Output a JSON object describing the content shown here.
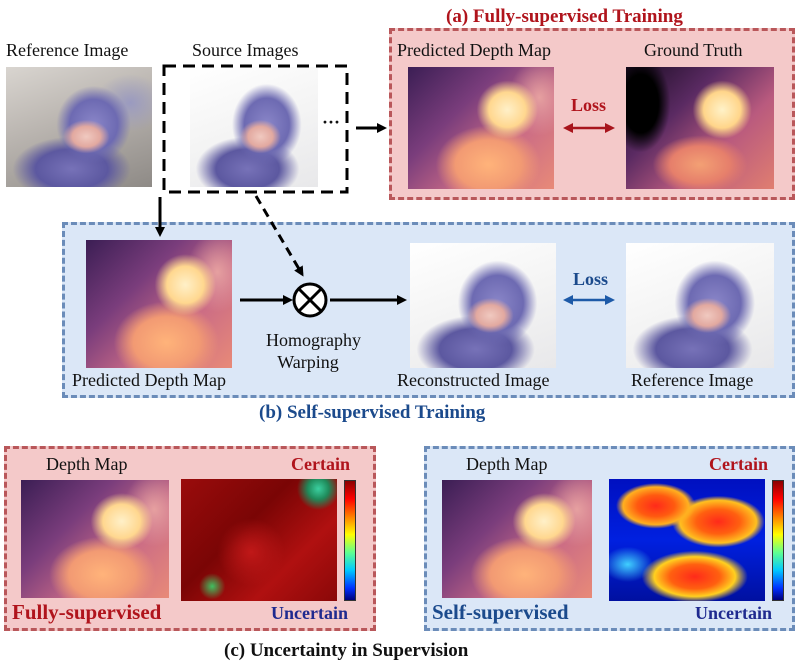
{
  "figure": {
    "top": {
      "reference_image_label": "Reference Image",
      "source_images_label": "Source Images",
      "ellipsis": "···"
    },
    "panel_a": {
      "title": "(a) Fully-supervised Training",
      "predicted_label": "Predicted Depth Map",
      "ground_truth_label": "Ground Truth",
      "loss_label": "Loss"
    },
    "panel_b": {
      "title": "(b) Self-supervised Training",
      "predicted_label": "Predicted Depth Map",
      "warp_label_line1": "Homography",
      "warp_label_line2": "Warping",
      "reconstructed_label": "Reconstructed Image",
      "reference_label": "Reference Image",
      "loss_label": "Loss"
    },
    "panel_c": {
      "title": "(c) Uncertainty in Supervision",
      "left": {
        "depth_label": "Depth Map",
        "certain_label": "Certain",
        "uncertain_label": "Uncertain",
        "mode_label": "Fully-supervised"
      },
      "right": {
        "depth_label": "Depth Map",
        "certain_label": "Certain",
        "uncertain_label": "Uncertain",
        "mode_label": "Self-supervised"
      }
    }
  },
  "colors": {
    "pink_panel": "#f4c9c9",
    "pink_border": "#b9575a",
    "blue_panel": "#dbe7f7",
    "blue_border": "#6b8cb9",
    "red_text": "#b0141c",
    "blue_text": "#1b4a8c",
    "loss_red_arrow": "#a8141c",
    "loss_blue_arrow": "#1d5aa8"
  },
  "icons": [
    "otimes-icon",
    "arrow-icon"
  ]
}
